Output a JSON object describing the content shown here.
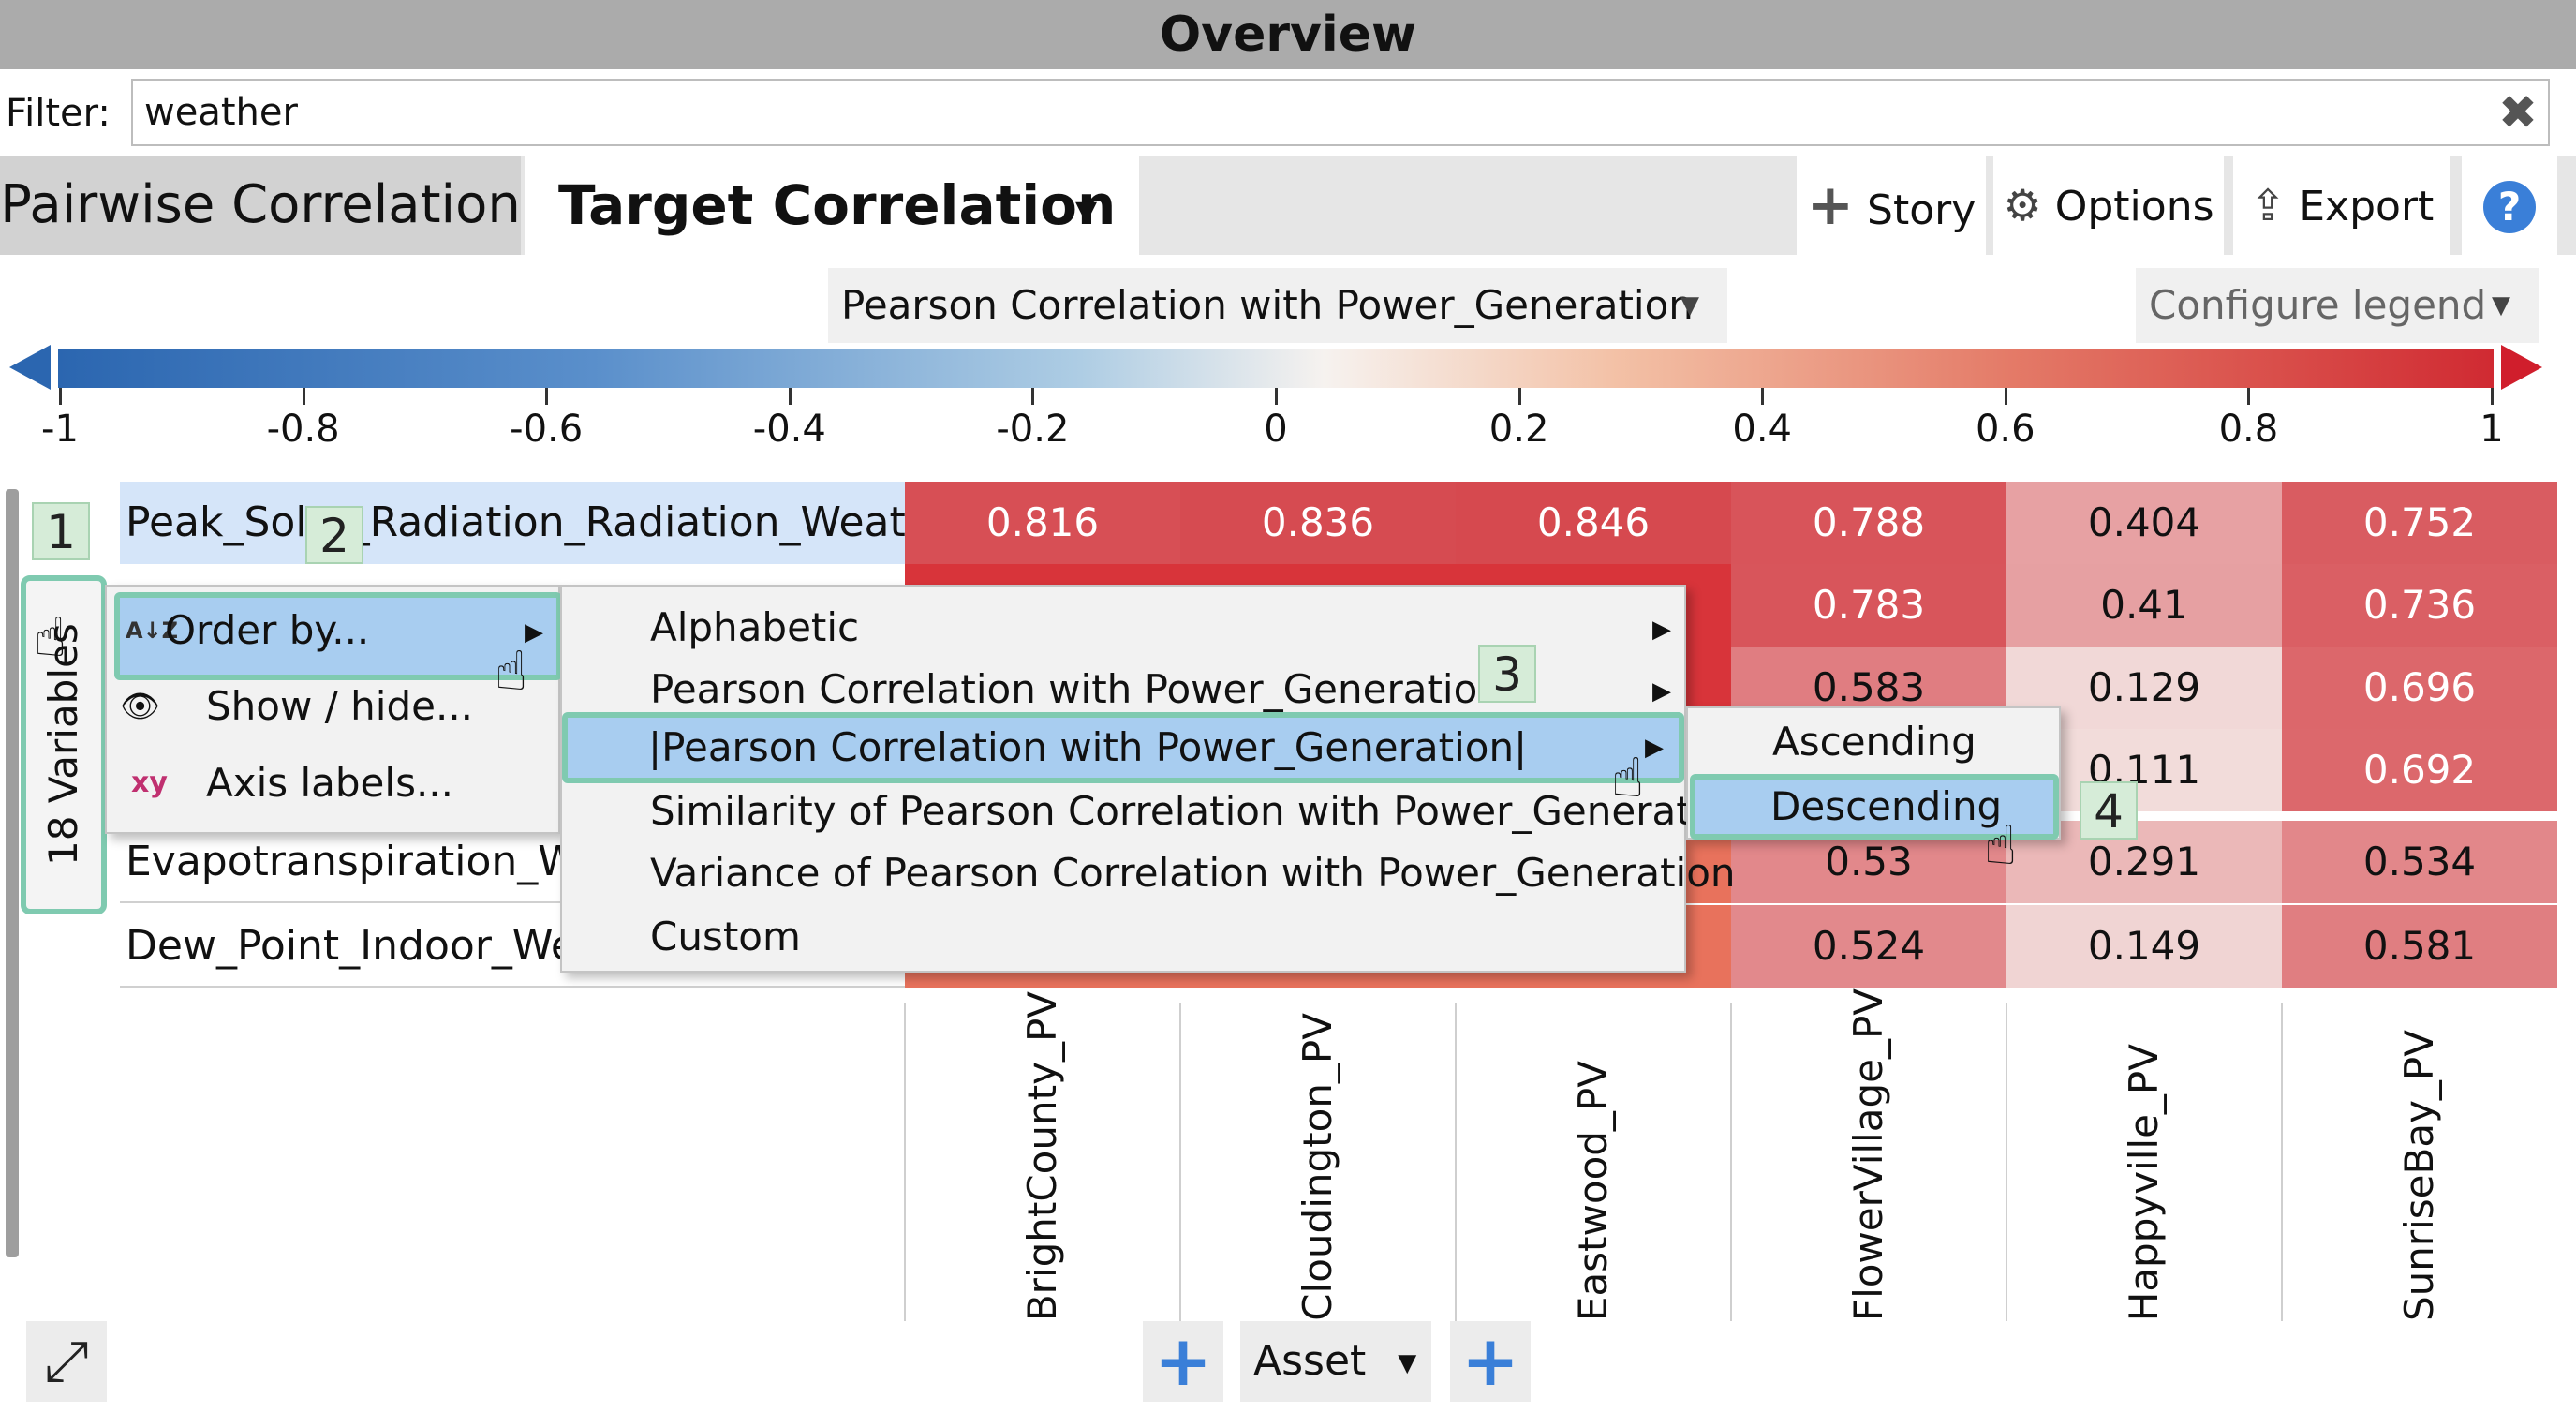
{
  "window": {
    "title": "Overview"
  },
  "filter": {
    "label": "Filter:",
    "value": "weather",
    "clear_icon": "✖"
  },
  "tabs": [
    {
      "label": "Pairwise Correlation",
      "active": false
    },
    {
      "label": "Target Correlation",
      "active": true,
      "dropdown_icon": "▼"
    }
  ],
  "toolbar": {
    "story": {
      "icon": "+",
      "label": "Story"
    },
    "options": {
      "icon": "⚙",
      "label": "Options"
    },
    "export": {
      "icon": "⇪",
      "label": "Export"
    },
    "help": {
      "icon": "?"
    }
  },
  "metric_dropdown": {
    "label": "Pearson Correlation with Power_Generation"
  },
  "legend_dropdown": {
    "label": "Configure legend"
  },
  "legend": {
    "ticks": [
      "-1",
      "-0.8",
      "-0.6",
      "-0.4",
      "-0.2",
      "0",
      "0.2",
      "0.4",
      "0.6",
      "0.8",
      "1"
    ],
    "min_color": "#2b66b0",
    "mid_color": "#f6f2ef",
    "max_color": "#d02a32"
  },
  "variables_label": "18 Variables",
  "rows": [
    {
      "label": "Peak_Solar_Radiation_Radiation_Weather",
      "values": [
        "0.816",
        "0.836",
        "0.846",
        "0.788",
        "0.404",
        "0.752"
      ]
    },
    {
      "label": "",
      "values": [
        "",
        "",
        "",
        "0.783",
        "0.41",
        "0.736"
      ]
    },
    {
      "label": "",
      "values": [
        "",
        "",
        "",
        "0.583",
        "0.129",
        "0.696"
      ]
    },
    {
      "label": "",
      "values": [
        "",
        "",
        "",
        "",
        "0.111",
        "0.692"
      ]
    },
    {
      "label": "Evapotranspiration_Weather",
      "values": [
        "",
        "",
        "",
        "0.53",
        "0.291",
        "0.534"
      ]
    },
    {
      "label": "Dew_Point_Indoor_Weather",
      "values": [
        "",
        "",
        "",
        "0.524",
        "0.149",
        "0.581"
      ]
    }
  ],
  "columns": [
    "BrightCounty_PV",
    "Cloudington_PV",
    "Eastwood_PV",
    "FlowerVillage_PV",
    "Happyville_PV",
    "SunriseBay_PV"
  ],
  "context_menu": {
    "items": [
      {
        "icon": "A↓Z",
        "label": "Order by..."
      },
      {
        "icon": "👁",
        "label": "Show / hide..."
      },
      {
        "icon": "xy",
        "label": "Axis labels..."
      }
    ]
  },
  "order_menu": {
    "items": [
      "Alphabetic",
      "Pearson Correlation with Power_Generation",
      "|Pearson Correlation with Power_Generation|",
      "Similarity of Pearson Correlation with Power_Generation",
      "Variance of Pearson Correlation with Power_Generation",
      "Custom"
    ]
  },
  "sort_menu": {
    "items": [
      "Ascending",
      "Descending"
    ]
  },
  "steps": [
    "1",
    "2",
    "3",
    "4"
  ],
  "bottom": {
    "expand_icon": "⤢",
    "add_icon": "+",
    "asset_label": "Asset"
  }
}
